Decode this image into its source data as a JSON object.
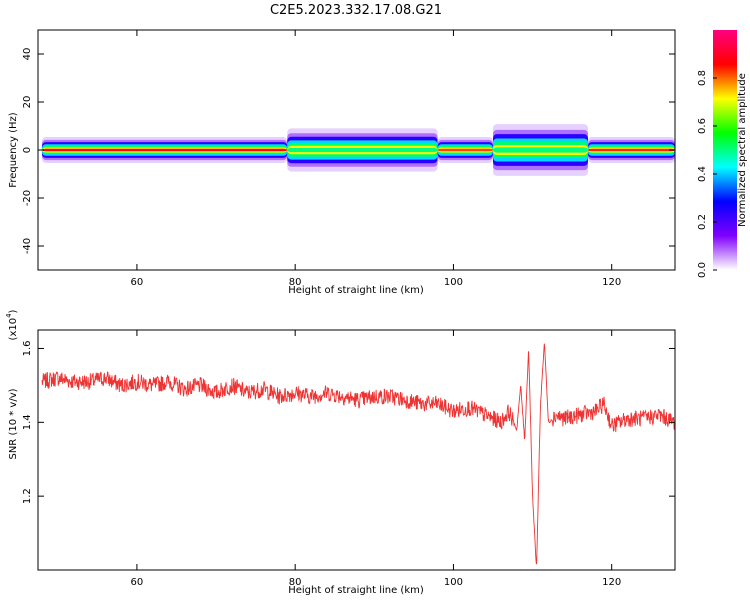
{
  "title": "C2E5.2023.332.17.08.G21",
  "chart_data": [
    {
      "type": "heatmap",
      "description_of_values": "Spectrogram of normalized spectral amplitude vs height and frequency",
      "xlabel": "Height of straight line (km)",
      "ylabel": "Frequency (Hz)",
      "xlim": [
        47.5,
        128
      ],
      "ylim": [
        -50,
        50
      ],
      "xticks": [
        60,
        80,
        100,
        120
      ],
      "yticks": [
        -40,
        -20,
        0,
        20,
        40
      ],
      "colorbar": {
        "label": "Normalized spectral amplitude",
        "range": [
          0,
          1
        ],
        "ticks": [
          "0.0",
          "0.2",
          "0.4",
          "0.6",
          "0.8"
        ],
        "colors": [
          "#ffffff",
          "#8000ff",
          "#0000ff",
          "#00ffff",
          "#00ff00",
          "#ffff00",
          "#ff0000",
          "#ff0080"
        ]
      },
      "band_segments": [
        {
          "x": [
            48,
            79
          ],
          "halfwidth_hz": 3,
          "core": "#ff0000"
        },
        {
          "x": [
            79,
            98
          ],
          "halfwidth_hz": 5,
          "core": "#00ff80"
        },
        {
          "x": [
            98,
            105
          ],
          "halfwidth_hz": 3,
          "core": "#ff4000"
        },
        {
          "x": [
            105,
            117
          ],
          "halfwidth_hz": 6,
          "core": "#00ff80"
        },
        {
          "x": [
            117,
            128
          ],
          "halfwidth_hz": 3,
          "core": "#ff2000"
        }
      ]
    },
    {
      "type": "line",
      "xlabel": "Height of straight line (km)",
      "ylabel": "SNR (10 * v/v)",
      "yscale_label": "(x10^4)",
      "xlim": [
        47.5,
        128
      ],
      "ylim": [
        1.0,
        1.65
      ],
      "xticks": [
        60,
        80,
        100,
        120
      ],
      "yticks": [
        "1.2",
        "1.4",
        "1.6"
      ],
      "series": [
        {
          "color": "#ee3333",
          "x": [
            48,
            50,
            52,
            54,
            56,
            58,
            60,
            62,
            64,
            66,
            68,
            70,
            72,
            74,
            76,
            78,
            80,
            82,
            84,
            86,
            88,
            90,
            92,
            94,
            96,
            98,
            100,
            102,
            104,
            106,
            107,
            108,
            108.5,
            109,
            109.5,
            110,
            110.5,
            111,
            111.5,
            112,
            113,
            114,
            116,
            118,
            119,
            120,
            122,
            124,
            126,
            128
          ],
          "y": [
            1.51,
            1.52,
            1.51,
            1.51,
            1.52,
            1.5,
            1.51,
            1.5,
            1.51,
            1.49,
            1.5,
            1.48,
            1.5,
            1.48,
            1.49,
            1.47,
            1.48,
            1.47,
            1.48,
            1.47,
            1.46,
            1.47,
            1.47,
            1.46,
            1.45,
            1.45,
            1.43,
            1.44,
            1.42,
            1.4,
            1.43,
            1.38,
            1.5,
            1.35,
            1.6,
            1.2,
            1.0,
            1.45,
            1.62,
            1.4,
            1.42,
            1.41,
            1.42,
            1.43,
            1.45,
            1.39,
            1.41,
            1.41,
            1.42,
            1.4
          ]
        }
      ]
    }
  ]
}
